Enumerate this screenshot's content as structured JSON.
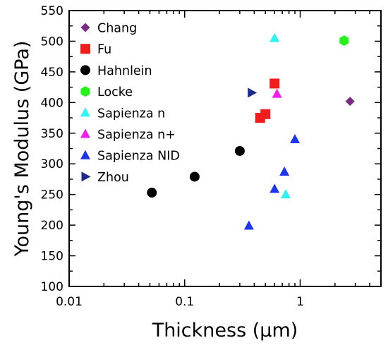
{
  "chart_data": {
    "type": "scatter",
    "title": "",
    "xlabel": "Thickness (μm)",
    "ylabel": "Young's Modulus (GPa)",
    "xscale": "log",
    "xlim": [
      0.01,
      5
    ],
    "ylim": [
      100,
      550
    ],
    "xticks": [
      {
        "value": 0.01,
        "label": "0.01"
      },
      {
        "value": 0.1,
        "label": "0.1"
      },
      {
        "value": 1,
        "label": "1"
      }
    ],
    "yticks": [
      100,
      150,
      200,
      250,
      300,
      350,
      400,
      450,
      500,
      550
    ],
    "grid": false,
    "legend_position": "top-left",
    "series": [
      {
        "name": "Chang",
        "marker": "diamond",
        "color": "#7b2a86",
        "points": [
          {
            "x": 2.7,
            "y": 402
          }
        ]
      },
      {
        "name": "Fu",
        "marker": "square",
        "color": "#f21c1c",
        "points": [
          {
            "x": 0.45,
            "y": 375
          },
          {
            "x": 0.5,
            "y": 381
          },
          {
            "x": 0.6,
            "y": 431
          }
        ]
      },
      {
        "name": "Hahnlein",
        "marker": "circle",
        "color": "#000000",
        "points": [
          {
            "x": 0.052,
            "y": 253
          },
          {
            "x": 0.122,
            "y": 279
          },
          {
            "x": 0.3,
            "y": 321
          }
        ]
      },
      {
        "name": "Locke",
        "marker": "hexagon",
        "color": "#27f21b",
        "points": [
          {
            "x": 2.4,
            "y": 501
          }
        ]
      },
      {
        "name": "Sapienza n",
        "marker": "triangle-up",
        "color": "#2ff2f2",
        "points": [
          {
            "x": 0.6,
            "y": 505
          },
          {
            "x": 0.75,
            "y": 250
          }
        ]
      },
      {
        "name": "Sapienza n+",
        "marker": "triangle-up",
        "color": "#f21cf2",
        "points": [
          {
            "x": 0.63,
            "y": 414
          }
        ]
      },
      {
        "name": "Sapienza NID",
        "marker": "triangle-up",
        "color": "#1b35f2",
        "points": [
          {
            "x": 0.36,
            "y": 199
          },
          {
            "x": 0.6,
            "y": 259
          },
          {
            "x": 0.73,
            "y": 287
          },
          {
            "x": 0.9,
            "y": 340
          }
        ]
      },
      {
        "name": "Zhou",
        "marker": "triangle-right",
        "color": "#1e2a8c",
        "points": [
          {
            "x": 0.38,
            "y": 416
          }
        ]
      }
    ]
  }
}
